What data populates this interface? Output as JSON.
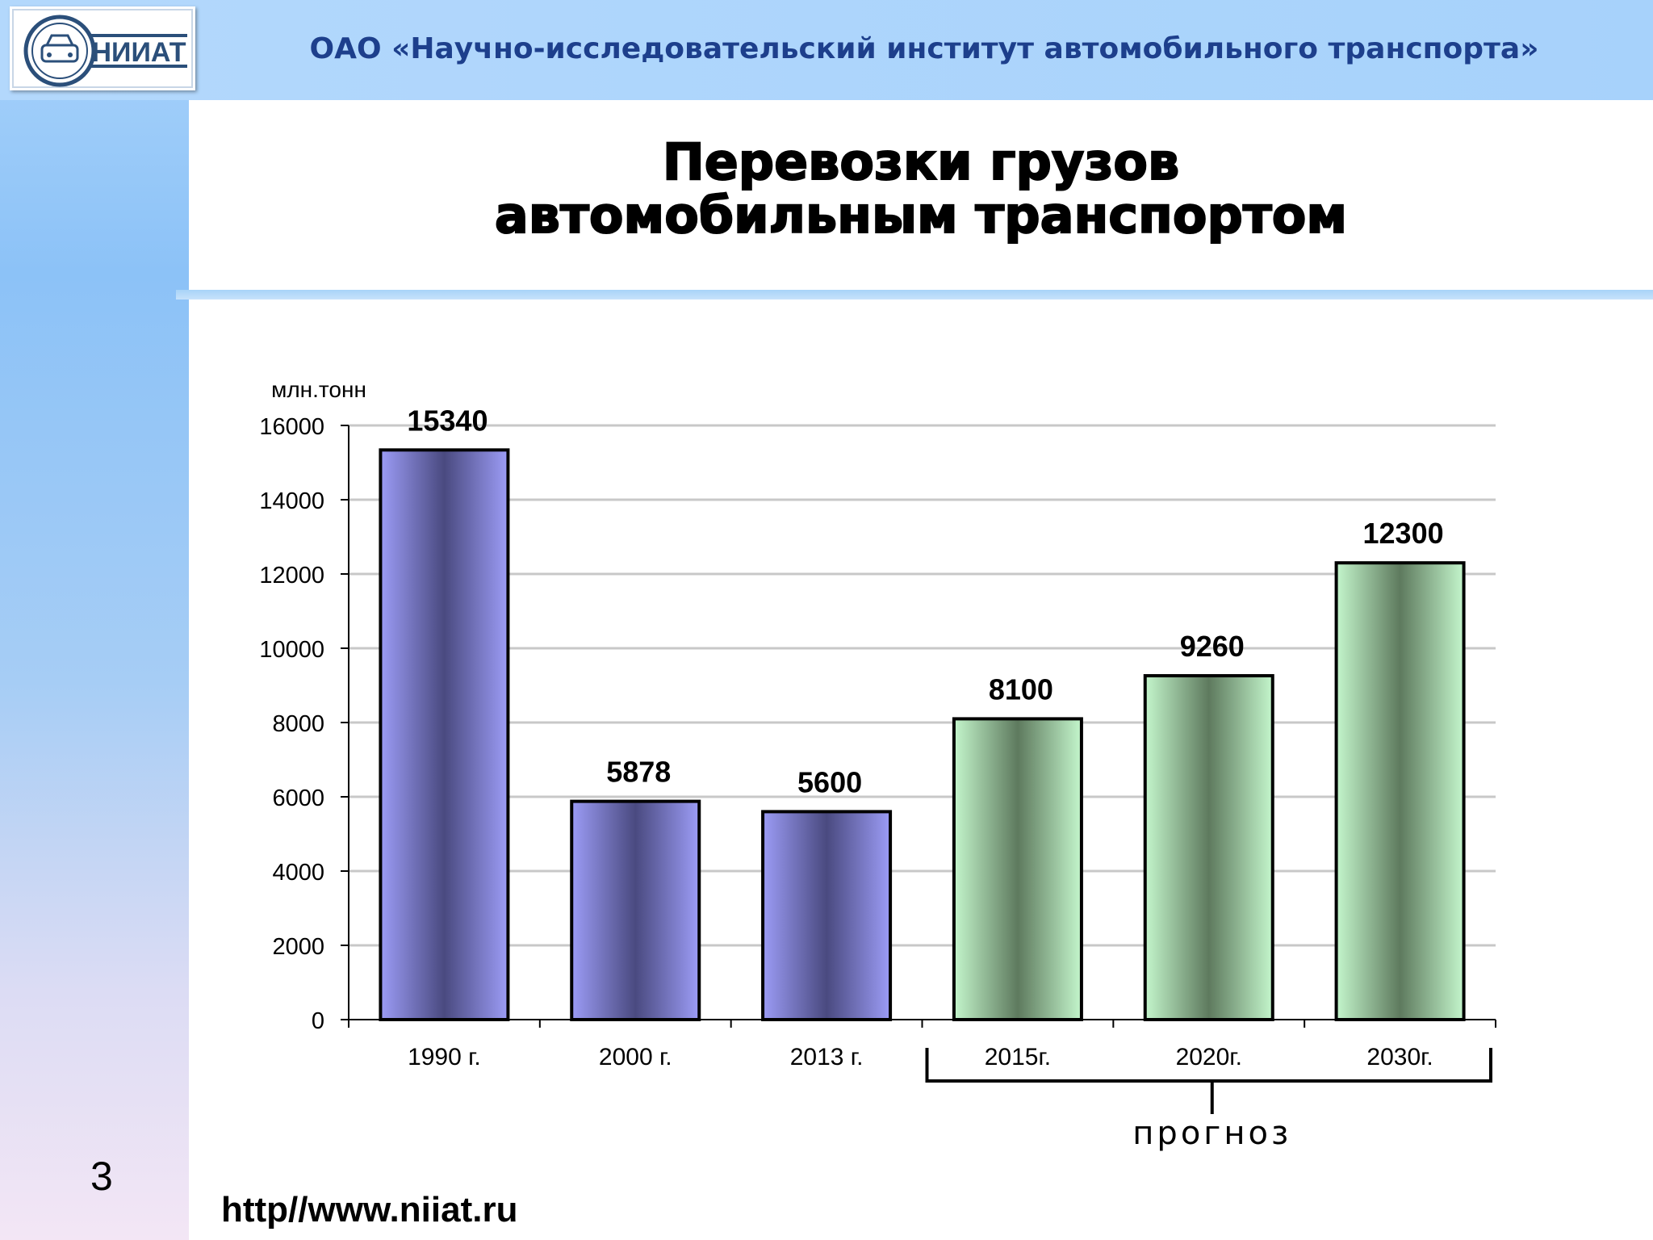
{
  "header": {
    "logo_text": "НИИАТ",
    "org_name": "ОАО «Научно-исследовательский институт автомобильного транспорта»"
  },
  "slide": {
    "title_line1": "Перевозки грузов",
    "title_line2": "автомобильным транспортом",
    "number": "3",
    "url": "http//www.niiat.ru"
  },
  "colors": {
    "actual_bar": "#9c9cf6",
    "actual_bar_dark": "#4a4a80",
    "forecast_bar": "#c4f6cc",
    "forecast_bar_dark": "#5e7a5e"
  },
  "chart_data": {
    "type": "bar",
    "ylabel": "млн.тонн",
    "ylim": [
      0,
      16000
    ],
    "yticks": [
      0,
      2000,
      4000,
      6000,
      8000,
      10000,
      12000,
      14000,
      16000
    ],
    "grid": true,
    "categories": [
      "1990 г.",
      "2000 г.",
      "2013 г.",
      "2015г.",
      "2020г.",
      "2030г."
    ],
    "values": [
      15340,
      5878,
      5600,
      8100,
      9260,
      12300
    ],
    "value_labels": [
      "15340",
      "5878",
      "5600",
      "8100",
      "9260",
      "12300"
    ],
    "forecast_label": "прогноз",
    "forecast_categories": [
      "2015г.",
      "2020г.",
      "2030г."
    ]
  }
}
